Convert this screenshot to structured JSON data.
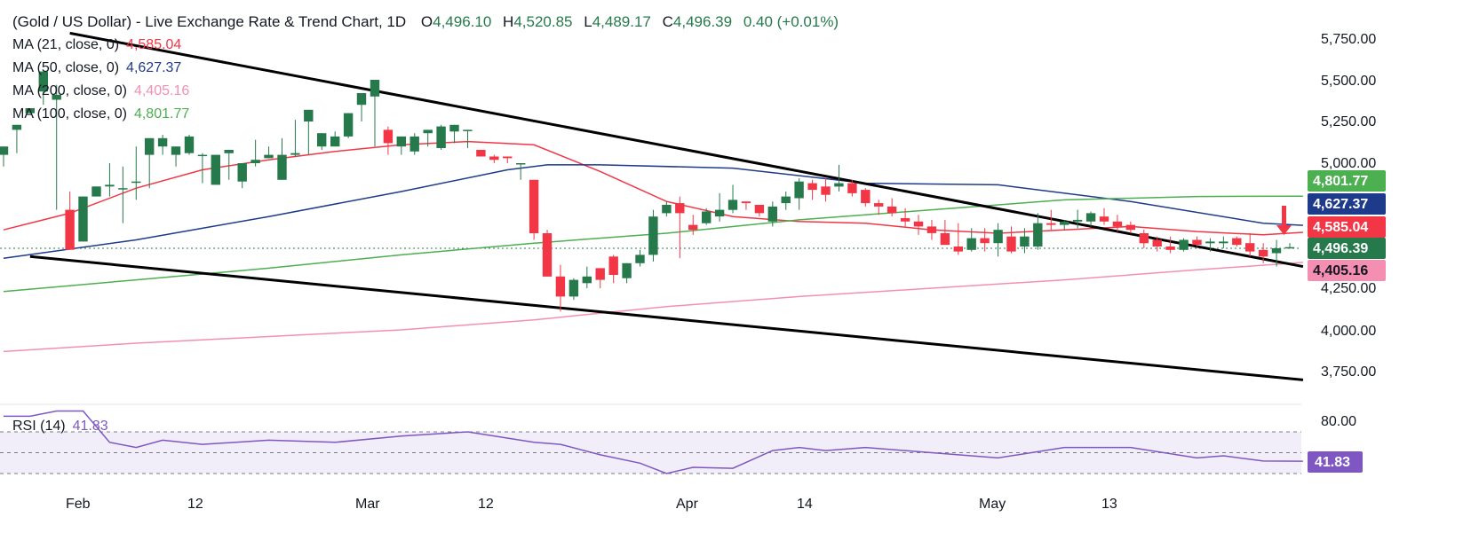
{
  "header": {
    "title": "(Gold / US Dollar) - Live Exchange Rate & Trend Chart, 1D",
    "open_label": "O",
    "open": "4,496.10",
    "high_label": "H",
    "high": "4,520.85",
    "low_label": "L",
    "low": "4,489.17",
    "close_label": "C",
    "close": "4,496.39",
    "change": "0.40 (+0.01%)"
  },
  "indicators": [
    {
      "label": "MA (21, close, 0)",
      "value": "4,585.04",
      "color": "#f23645"
    },
    {
      "label": "MA (50, close, 0)",
      "value": "4,627.37",
      "color": "#1e3a8a"
    },
    {
      "label": "MA (200, close, 0)",
      "value": "4,405.16",
      "color": "#f48fb1"
    },
    {
      "label": "MA (100, close, 0)",
      "value": "4,801.77",
      "color": "#4caf50"
    }
  ],
  "rsi": {
    "label": "RSI (14)",
    "value": "41.83",
    "color": "#7e57c2",
    "level_label": "80.00"
  },
  "colors": {
    "up": "#26794b",
    "down": "#f23645",
    "trendline": "#000000"
  },
  "badges": [
    {
      "value": "4,801.77",
      "color": "#4caf50"
    },
    {
      "value": "4,627.37",
      "color": "#1e3a8a"
    },
    {
      "value": "4,585.04",
      "color": "#f23645"
    },
    {
      "value": "4,496.39",
      "color": "#26794b"
    },
    {
      "value": "4,405.16",
      "color": "#f48fb1"
    }
  ],
  "arrow": {
    "direction": "down",
    "color": "#f23645"
  },
  "chart_data": {
    "type": "candlestick",
    "y_axis_ticks": [
      "5,750.00",
      "5,500.00",
      "5,250.00",
      "5,000.00",
      "4,250.00",
      "4,000.00",
      "3,750.00"
    ],
    "ylim": [
      3600,
      5860
    ],
    "x_axis_ticks": [
      "Feb",
      "12",
      "Mar",
      "12",
      "Apr",
      "14",
      "May",
      "13"
    ],
    "candles": [
      [
        5050,
        5100,
        5020,
        4980
      ],
      [
        5200,
        5230,
        5200,
        5060
      ],
      [
        5300,
        5330,
        5300,
        5430
      ],
      [
        5430,
        5550,
        5230,
        5350
      ],
      [
        5380,
        5410,
        5470,
        4720
      ],
      [
        4720,
        4480,
        4830,
        4750
      ],
      [
        4530,
        4800,
        4520,
        4850
      ],
      [
        4800,
        4860,
        4850,
        4800
      ],
      [
        4860,
        4870,
        5000,
        4800
      ],
      [
        4850,
        4850,
        4980,
        4640
      ],
      [
        4890,
        4890,
        5100,
        4780
      ],
      [
        5050,
        5150,
        5020,
        4850
      ],
      [
        5100,
        5150,
        5170,
        5050
      ],
      [
        5050,
        5100,
        5040,
        4980
      ],
      [
        5060,
        5160,
        5170,
        5050
      ],
      [
        5050,
        5050,
        5060,
        4880
      ],
      [
        4870,
        5050,
        4940,
        4880
      ],
      [
        5060,
        5080,
        5060,
        4900
      ],
      [
        4890,
        5000,
        4870,
        4850
      ],
      [
        5000,
        5020,
        5140,
        4980
      ],
      [
        5030,
        5050,
        5100,
        5030
      ],
      [
        4900,
        5050,
        5150,
        4970
      ],
      [
        5050,
        5060,
        5260,
        5040
      ],
      [
        5250,
        5320,
        5120,
        5050
      ],
      [
        5100,
        5180,
        5140,
        5080
      ],
      [
        5100,
        5160,
        5190,
        5100
      ],
      [
        5160,
        5300,
        5240,
        5150
      ],
      [
        5350,
        5420,
        5400,
        5250
      ],
      [
        5400,
        5500,
        5400,
        5100
      ],
      [
        5200,
        5120,
        5220,
        5050
      ],
      [
        5100,
        5160,
        5130,
        5050
      ],
      [
        5070,
        5160,
        5180,
        5050
      ],
      [
        5180,
        5200,
        5170,
        5100
      ],
      [
        5090,
        5220,
        5230,
        5080
      ],
      [
        5190,
        5230,
        5170,
        5120
      ],
      [
        5200,
        5200,
        5090,
        5090
      ],
      [
        5080,
        5040,
        5080,
        5040
      ],
      [
        5040,
        5020,
        5050,
        5000
      ],
      [
        5040,
        5030,
        5040,
        5000
      ],
      [
        5000,
        5000,
        4920,
        4900
      ],
      [
        4900,
        4580,
        4900,
        4540
      ],
      [
        4580,
        4320,
        4600,
        4320
      ],
      [
        4320,
        4200,
        4390,
        4110
      ],
      [
        4200,
        4300,
        4310,
        4180
      ],
      [
        4280,
        4320,
        4380,
        4250
      ],
      [
        4370,
        4300,
        4350,
        4250
      ],
      [
        4440,
        4330,
        4450,
        4280
      ],
      [
        4310,
        4400,
        4330,
        4280
      ],
      [
        4400,
        4450,
        4480,
        4380
      ],
      [
        4450,
        4680,
        4720,
        4410
      ],
      [
        4700,
        4750,
        4770,
        4680
      ],
      [
        4760,
        4700,
        4800,
        4430
      ],
      [
        4630,
        4600,
        4690,
        4570
      ],
      [
        4640,
        4710,
        4730,
        4630
      ],
      [
        4680,
        4720,
        4820,
        4650
      ],
      [
        4720,
        4780,
        4870,
        4700
      ],
      [
        4770,
        4760,
        4770,
        4720
      ],
      [
        4750,
        4700,
        4750,
        4680
      ],
      [
        4650,
        4740,
        4770,
        4620
      ],
      [
        4760,
        4800,
        4830,
        4720
      ],
      [
        4790,
        4890,
        4910,
        4720
      ],
      [
        4880,
        4840,
        4900,
        4780
      ],
      [
        4860,
        4810,
        4910,
        4770
      ],
      [
        4860,
        4880,
        4990,
        4830
      ],
      [
        4880,
        4820,
        4900,
        4800
      ],
      [
        4840,
        4760,
        4850,
        4740
      ],
      [
        4760,
        4740,
        4780,
        4690
      ],
      [
        4740,
        4700,
        4790,
        4680
      ],
      [
        4670,
        4650,
        4730,
        4620
      ],
      [
        4650,
        4620,
        4690,
        4570
      ],
      [
        4620,
        4580,
        4660,
        4540
      ],
      [
        4580,
        4510,
        4660,
        4520
      ],
      [
        4500,
        4470,
        4640,
        4450
      ],
      [
        4480,
        4550,
        4610,
        4470
      ],
      [
        4550,
        4520,
        4610,
        4470
      ],
      [
        4520,
        4600,
        4640,
        4440
      ],
      [
        4560,
        4470,
        4620,
        4460
      ],
      [
        4500,
        4560,
        4610,
        4460
      ],
      [
        4500,
        4640,
        4700,
        4480
      ],
      [
        4640,
        4630,
        4720,
        4600
      ],
      [
        4630,
        4650,
        4660,
        4600
      ],
      [
        4650,
        4660,
        4720,
        4610
      ],
      [
        4650,
        4700,
        4710,
        4620
      ],
      [
        4680,
        4650,
        4730,
        4630
      ],
      [
        4650,
        4620,
        4690,
        4590
      ],
      [
        4630,
        4600,
        4650,
        4580
      ],
      [
        4580,
        4520,
        4600,
        4490
      ],
      [
        4540,
        4500,
        4560,
        4470
      ],
      [
        4500,
        4480,
        4560,
        4460
      ],
      [
        4480,
        4540,
        4550,
        4470
      ],
      [
        4540,
        4510,
        4560,
        4500
      ],
      [
        4520,
        4530,
        4550,
        4470
      ],
      [
        4520,
        4530,
        4560,
        4490
      ],
      [
        4550,
        4510,
        4560,
        4500
      ],
      [
        4520,
        4470,
        4580,
        4440
      ],
      [
        4480,
        4440,
        4520,
        4400
      ],
      [
        4460,
        4490,
        4540,
        4380
      ],
      [
        4496.1,
        4496.39,
        4520.85,
        4489.17
      ]
    ],
    "moving_averages": [
      {
        "name": "MA (21, close, 0)",
        "points": [
          [
            0,
            4600
          ],
          [
            5,
            4700
          ],
          [
            10,
            4850
          ],
          [
            15,
            4960
          ],
          [
            20,
            5020
          ],
          [
            25,
            5070
          ],
          [
            30,
            5110
          ],
          [
            35,
            5130
          ],
          [
            40,
            5110
          ],
          [
            45,
            4950
          ],
          [
            50,
            4770
          ],
          [
            55,
            4680
          ],
          [
            60,
            4650
          ],
          [
            65,
            4640
          ],
          [
            70,
            4600
          ],
          [
            75,
            4580
          ],
          [
            80,
            4600
          ],
          [
            85,
            4620
          ],
          [
            90,
            4590
          ],
          [
            95,
            4570
          ],
          [
            98,
            4585
          ]
        ]
      },
      {
        "name": "MA (50, close, 0)",
        "points": [
          [
            0,
            4430
          ],
          [
            10,
            4540
          ],
          [
            20,
            4680
          ],
          [
            30,
            4830
          ],
          [
            38,
            4960
          ],
          [
            41,
            4990
          ],
          [
            45,
            4990
          ],
          [
            55,
            4970
          ],
          [
            65,
            4880
          ],
          [
            75,
            4870
          ],
          [
            85,
            4770
          ],
          [
            95,
            4640
          ],
          [
            98,
            4627
          ]
        ]
      },
      {
        "name": "MA (100, close, 0)",
        "points": [
          [
            0,
            4230
          ],
          [
            10,
            4300
          ],
          [
            20,
            4370
          ],
          [
            30,
            4450
          ],
          [
            40,
            4520
          ],
          [
            50,
            4580
          ],
          [
            60,
            4660
          ],
          [
            70,
            4720
          ],
          [
            80,
            4780
          ],
          [
            90,
            4800
          ],
          [
            98,
            4802
          ]
        ]
      },
      {
        "name": "MA (200, close, 0)",
        "points": [
          [
            0,
            3870
          ],
          [
            10,
            3920
          ],
          [
            20,
            3960
          ],
          [
            30,
            4000
          ],
          [
            40,
            4060
          ],
          [
            50,
            4140
          ],
          [
            60,
            4200
          ],
          [
            70,
            4250
          ],
          [
            80,
            4300
          ],
          [
            90,
            4360
          ],
          [
            98,
            4405
          ]
        ]
      }
    ],
    "trendlines": [
      {
        "name": "upper",
        "points": [
          [
            5,
            5780
          ],
          [
            98,
            4380
          ]
        ]
      },
      {
        "name": "lower",
        "points": [
          [
            2,
            4440
          ],
          [
            98,
            3700
          ]
        ]
      }
    ],
    "rsi_points": [
      [
        0,
        85
      ],
      [
        2,
        85
      ],
      [
        4,
        90
      ],
      [
        6,
        90
      ],
      [
        8,
        60
      ],
      [
        10,
        55
      ],
      [
        12,
        62
      ],
      [
        15,
        58
      ],
      [
        20,
        62
      ],
      [
        25,
        60
      ],
      [
        30,
        66
      ],
      [
        35,
        70
      ],
      [
        40,
        60
      ],
      [
        42,
        58
      ],
      [
        45,
        48
      ],
      [
        48,
        40
      ],
      [
        50,
        30
      ],
      [
        52,
        36
      ],
      [
        55,
        35
      ],
      [
        58,
        52
      ],
      [
        60,
        55
      ],
      [
        62,
        52
      ],
      [
        65,
        55
      ],
      [
        70,
        50
      ],
      [
        75,
        45
      ],
      [
        80,
        55
      ],
      [
        85,
        55
      ],
      [
        90,
        45
      ],
      [
        92,
        47
      ],
      [
        95,
        42
      ],
      [
        98,
        41.83
      ]
    ],
    "rsi_levels": [
      30,
      50,
      70
    ]
  }
}
